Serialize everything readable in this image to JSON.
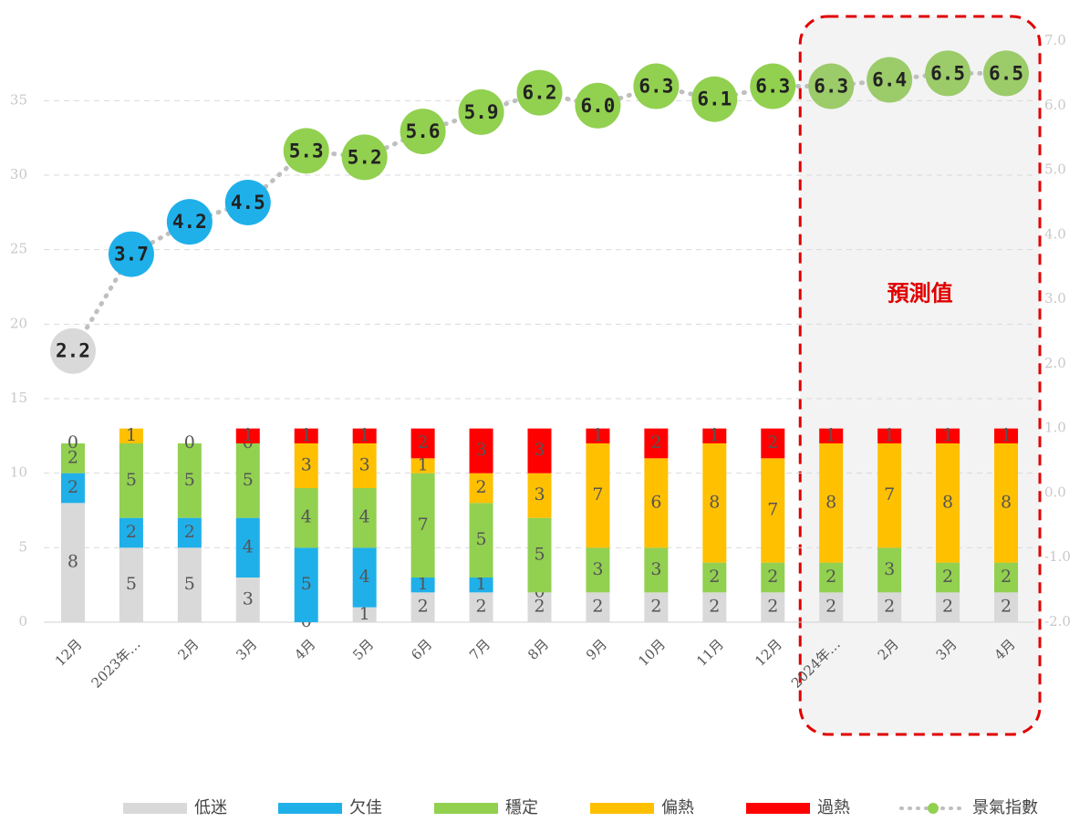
{
  "chart_data": {
    "type": "stacked-bar-line",
    "categories": [
      "12月",
      "2023年…",
      "2月",
      "3月",
      "4月",
      "5月",
      "6月",
      "7月",
      "8月",
      "9月",
      "10月",
      "11月",
      "12月",
      "2024年…",
      "2月",
      "3月",
      "4月"
    ],
    "series": [
      {
        "name": "低迷",
        "color": "#d9d9d9",
        "values": [
          8,
          5,
          5,
          3,
          0,
          1,
          2,
          2,
          2,
          2,
          2,
          2,
          2,
          2,
          2,
          2,
          2
        ]
      },
      {
        "name": "欠佳",
        "color": "#1fb0ea",
        "values": [
          2,
          2,
          2,
          4,
          5,
          4,
          1,
          1,
          0,
          null,
          null,
          null,
          null,
          null,
          null,
          null,
          null
        ]
      },
      {
        "name": "穩定",
        "color": "#92d050",
        "values": [
          2,
          5,
          5,
          5,
          4,
          4,
          7,
          5,
          5,
          3,
          3,
          2,
          2,
          2,
          3,
          2,
          2
        ]
      },
      {
        "name": "偏熱",
        "color": "#ffc000",
        "values": [
          0,
          1,
          null,
          0,
          3,
          3,
          1,
          2,
          3,
          7,
          6,
          8,
          7,
          8,
          7,
          8,
          8
        ]
      },
      {
        "name": "過熱",
        "color": "#ff0000",
        "values": [
          null,
          null,
          0,
          1,
          1,
          1,
          2,
          3,
          3,
          1,
          2,
          1,
          2,
          1,
          1,
          1,
          1
        ]
      },
      {
        "name": "景氣指數",
        "color": "#bfbfbf",
        "axis": "y2",
        "values": [
          2.2,
          3.7,
          4.2,
          4.5,
          5.3,
          5.2,
          5.6,
          5.9,
          6.2,
          6.0,
          6.3,
          6.1,
          6.3,
          6.3,
          6.4,
          6.5,
          6.5
        ],
        "value_labels": [
          "2.2",
          "3.7",
          "4.2",
          "4.5",
          "5.3",
          "5.2",
          "5.6",
          "5.9",
          "6.2",
          "6.0",
          "6.3",
          "6.1",
          "6.3",
          "6.3",
          "6.4",
          "6.5",
          "6.5"
        ],
        "point_colors": [
          "#d9d9d9",
          "#1fb0ea",
          "#1fb0ea",
          "#1fb0ea",
          "#92d050",
          "#92d050",
          "#92d050",
          "#92d050",
          "#92d050",
          "#92d050",
          "#92d050",
          "#92d050",
          "#92d050",
          "#9ccb6a",
          "#9ccb6a",
          "#9ccb6a",
          "#9ccb6a"
        ]
      }
    ],
    "ylim": [
      0,
      39
    ],
    "yticks": [
      0,
      5,
      10,
      15,
      20,
      25,
      30,
      35
    ],
    "y2lim": [
      -2,
      7
    ],
    "y2ticks": [
      {
        "value": -2,
        "label": "-2.0"
      },
      {
        "value": -1,
        "label": "-1.0"
      },
      {
        "value": 0,
        "label": "0.0"
      },
      {
        "value": 1,
        "label": "1.0"
      },
      {
        "value": 2,
        "label": "2.0"
      },
      {
        "value": 3,
        "label": "3.0"
      },
      {
        "value": 4,
        "label": "4.0"
      },
      {
        "value": 5,
        "label": "5.0"
      },
      {
        "value": 6,
        "label": "6.0"
      },
      {
        "value": 7,
        "label": "7.0"
      }
    ],
    "grid": true,
    "annotation": {
      "text": "預測值",
      "from": 13,
      "to": 16,
      "color": "#e00000"
    }
  }
}
